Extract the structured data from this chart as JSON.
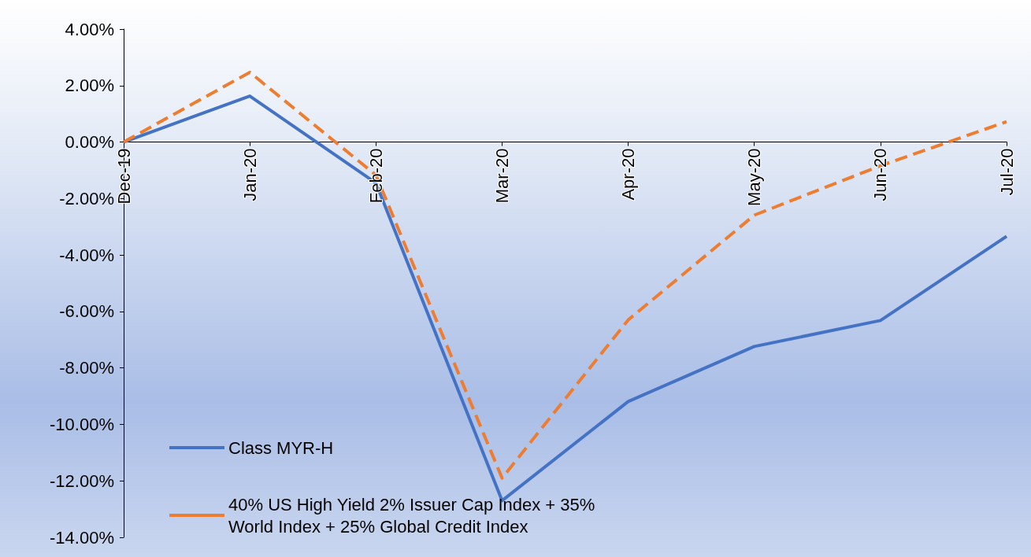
{
  "chart_data": {
    "type": "line",
    "categories": [
      "Dec-19",
      "Jan-20",
      "Feb-20",
      "Mar-20",
      "Apr-20",
      "May-20",
      "Jun-20",
      "Jul-20"
    ],
    "series": [
      {
        "name": "Class MYR-H",
        "color": "#4472c4",
        "line_style": "solid",
        "values": [
          0,
          1.63,
          -1.45,
          -12.7,
          -9.19,
          -7.24,
          -6.32,
          -3.34
        ]
      },
      {
        "name": "40% US High Yield 2% Issuer Cap Index + 35% World Index + 25% Global Credit Index",
        "color": "#ed7d31",
        "line_style": "dashed",
        "values": [
          0,
          2.47,
          -1.17,
          -11.9,
          -6.3,
          -2.59,
          -0.84,
          0.72
        ]
      }
    ],
    "ylim": [
      -14,
      4
    ],
    "yticks": [
      {
        "value": -14,
        "label": "-14.00%"
      },
      {
        "value": -12,
        "label": "-12.00%"
      },
      {
        "value": -10,
        "label": "-10.00%"
      },
      {
        "value": -8,
        "label": "-8.00%"
      },
      {
        "value": -6,
        "label": "-6.00%"
      },
      {
        "value": -4,
        "label": "-4.00%"
      },
      {
        "value": -2,
        "label": "-2.00%"
      },
      {
        "value": 0,
        "label": "0.00%"
      },
      {
        "value": 2,
        "label": "2.00%"
      },
      {
        "value": 4,
        "label": "4.00%"
      }
    ],
    "grid": false,
    "legend": "bottom left",
    "marker": "none"
  }
}
